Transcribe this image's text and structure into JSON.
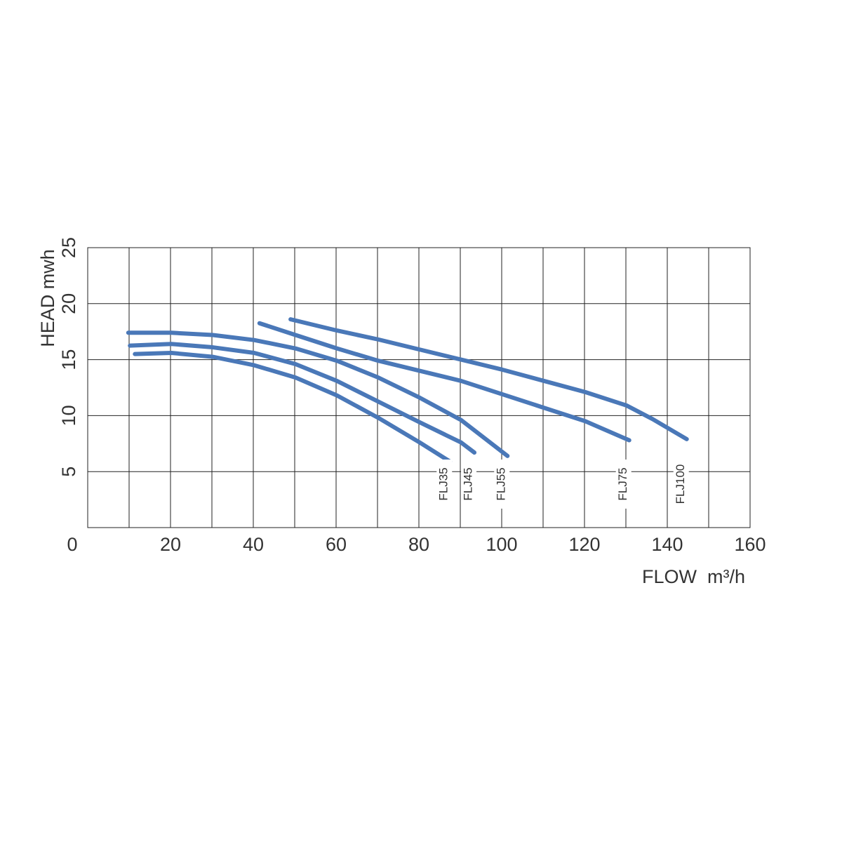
{
  "chart_data": {
    "type": "line",
    "x_label": "FLOW  m³/h",
    "y_label": "HEAD mwh",
    "origin_label": "0",
    "xlim": [
      0,
      160
    ],
    "xticks": [
      0,
      20,
      40,
      60,
      80,
      100,
      120,
      140,
      160
    ],
    "xminorticks": [
      10,
      30,
      50,
      70,
      90,
      110,
      130,
      150
    ],
    "ylim": [
      0,
      25
    ],
    "yticks": [
      5,
      10,
      15,
      20,
      25
    ],
    "grid": true,
    "series": [
      {
        "name": "FLJ35",
        "color": "#4a78b8",
        "x": [
          11.4,
          20.2,
          30.2,
          40.2,
          50.2,
          60.2,
          70.2,
          80.2,
          87.5
        ],
        "values": [
          15.5,
          15.6,
          15.25,
          14.5,
          13.4,
          11.8,
          9.8,
          7.6,
          5.9
        ]
      },
      {
        "name": "FLJ45",
        "color": "#4a78b8",
        "x": [
          10.2,
          20.2,
          30.2,
          40.2,
          50.2,
          60.2,
          70.2,
          80.2,
          90.2,
          93.4
        ],
        "values": [
          16.25,
          16.4,
          16.1,
          15.6,
          14.6,
          13.1,
          11.25,
          9.4,
          7.6,
          6.7
        ]
      },
      {
        "name": "FLJ55",
        "color": "#4a78b8",
        "x": [
          9.8,
          20.2,
          30.2,
          40.2,
          50.2,
          60.2,
          70.2,
          80.2,
          90.2,
          101.4
        ],
        "values": [
          17.4,
          17.4,
          17.2,
          16.75,
          16,
          14.9,
          13.4,
          11.6,
          9.6,
          6.4
        ]
      },
      {
        "name": "FLJ75",
        "color": "#4a78b8",
        "x": [
          41.5,
          50.2,
          60.2,
          70.2,
          80.2,
          90.2,
          100.2,
          110.2,
          120.2,
          130.8
        ],
        "values": [
          18.25,
          17.2,
          16,
          14.9,
          14,
          13.1,
          11.9,
          10.7,
          9.5,
          7.8
        ]
      },
      {
        "name": "FLJ100",
        "color": "#4a78b8",
        "x": [
          49,
          60.2,
          70.2,
          80.2,
          90.2,
          100.2,
          110.2,
          120.2,
          130.2,
          136.4,
          144.7
        ],
        "values": [
          18.6,
          17.6,
          16.8,
          15.9,
          15,
          14.1,
          13.1,
          12.1,
          10.9,
          9.7,
          7.9
        ]
      }
    ]
  }
}
